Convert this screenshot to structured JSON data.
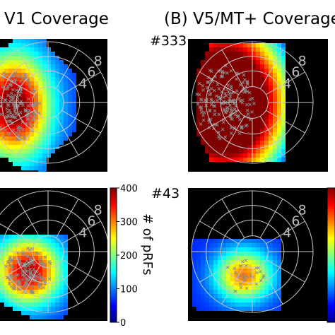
{
  "chart_data": [
    {
      "type": "heatmap",
      "title": "V1 Coverage",
      "subplot_label": "",
      "ecc_ticks": [
        "8",
        "6",
        "4"
      ],
      "peak": "right",
      "spread": 0.9
    },
    {
      "type": "heatmap",
      "title": "(B) V5/MT+ Coverage",
      "subplot_label": "#333",
      "ecc_ticks": [
        "8",
        "6",
        "4"
      ],
      "peak": "right",
      "spread": 1.6
    },
    {
      "type": "heatmap",
      "title": "",
      "subplot_label": "",
      "ecc_ticks": [
        "8",
        "6",
        "4"
      ],
      "peak": "right",
      "spread": 0.8
    },
    {
      "type": "heatmap",
      "title": "",
      "subplot_label": "#43",
      "ecc_ticks": [
        "8",
        "6",
        "4"
      ],
      "peak": "right",
      "spread": 0.6
    }
  ],
  "colorbar": {
    "label": "# of pRFs",
    "ticks": [
      "400",
      "300",
      "200",
      "100",
      "0"
    ],
    "range": [
      0,
      400
    ]
  },
  "colors": {
    "background": "#000000",
    "grid": "#c8c8c8",
    "markers": "#8c8c8c"
  }
}
